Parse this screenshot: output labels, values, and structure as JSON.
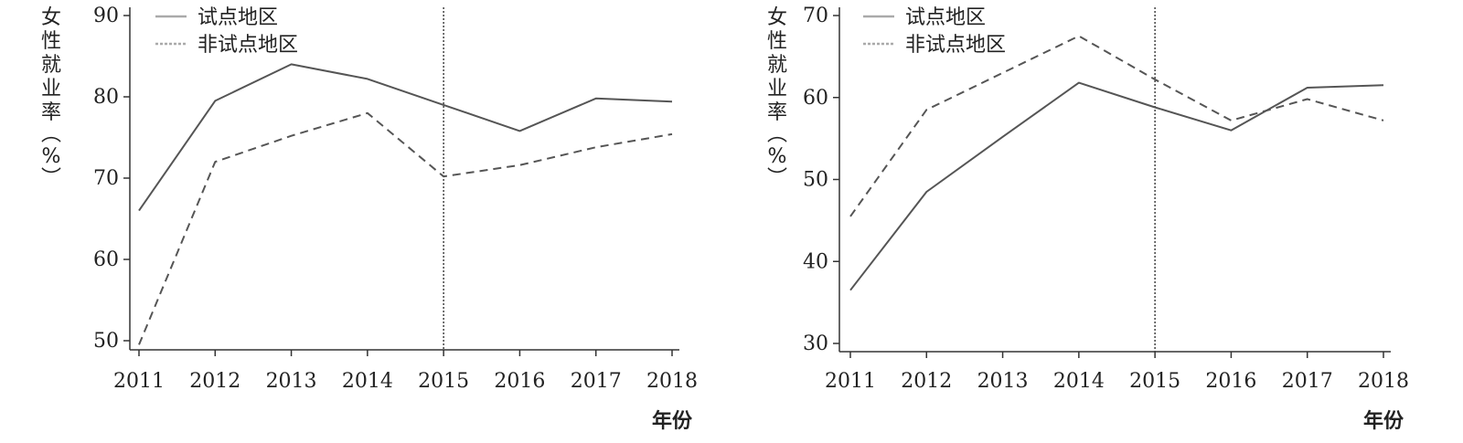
{
  "chart_data": [
    {
      "type": "line",
      "xlabel": "年份",
      "ylabel": "女性就业率（%）",
      "categories": [
        "2011",
        "2012",
        "2013",
        "2014",
        "2015",
        "2016",
        "2017",
        "2018"
      ],
      "ylim": [
        49,
        90
      ],
      "yticks": [
        "50",
        "60",
        "70",
        "80",
        "90"
      ],
      "reference_line": {
        "x": "2015",
        "style": "dotted"
      },
      "legend_position": "top-left",
      "series": [
        {
          "name": "试点地区",
          "style": "solid",
          "values": [
            66,
            79.5,
            84,
            82.2,
            79,
            75.8,
            79.8,
            79.4
          ]
        },
        {
          "name": "非试点地区",
          "style": "dashed",
          "values": [
            49.5,
            72,
            75.2,
            78,
            70.2,
            71.6,
            73.8,
            75.4
          ]
        }
      ]
    },
    {
      "type": "line",
      "xlabel": "年份",
      "ylabel": "女性就业率（%）",
      "categories": [
        "2011",
        "2012",
        "2013",
        "2014",
        "2015",
        "2016",
        "2017",
        "2018"
      ],
      "ylim": [
        29,
        70
      ],
      "yticks": [
        "30",
        "40",
        "50",
        "60",
        "70"
      ],
      "reference_line": {
        "x": "2015",
        "style": "dotted"
      },
      "legend_position": "top-left",
      "series": [
        {
          "name": "试点地区",
          "style": "solid",
          "values": [
            36.5,
            48.5,
            55.2,
            61.8,
            58.8,
            56,
            61.2,
            61.5
          ]
        },
        {
          "name": "非试点地区",
          "style": "dashed",
          "values": [
            45.5,
            58.5,
            63,
            67.5,
            62.2,
            57.2,
            59.8,
            57.2
          ]
        }
      ]
    }
  ]
}
